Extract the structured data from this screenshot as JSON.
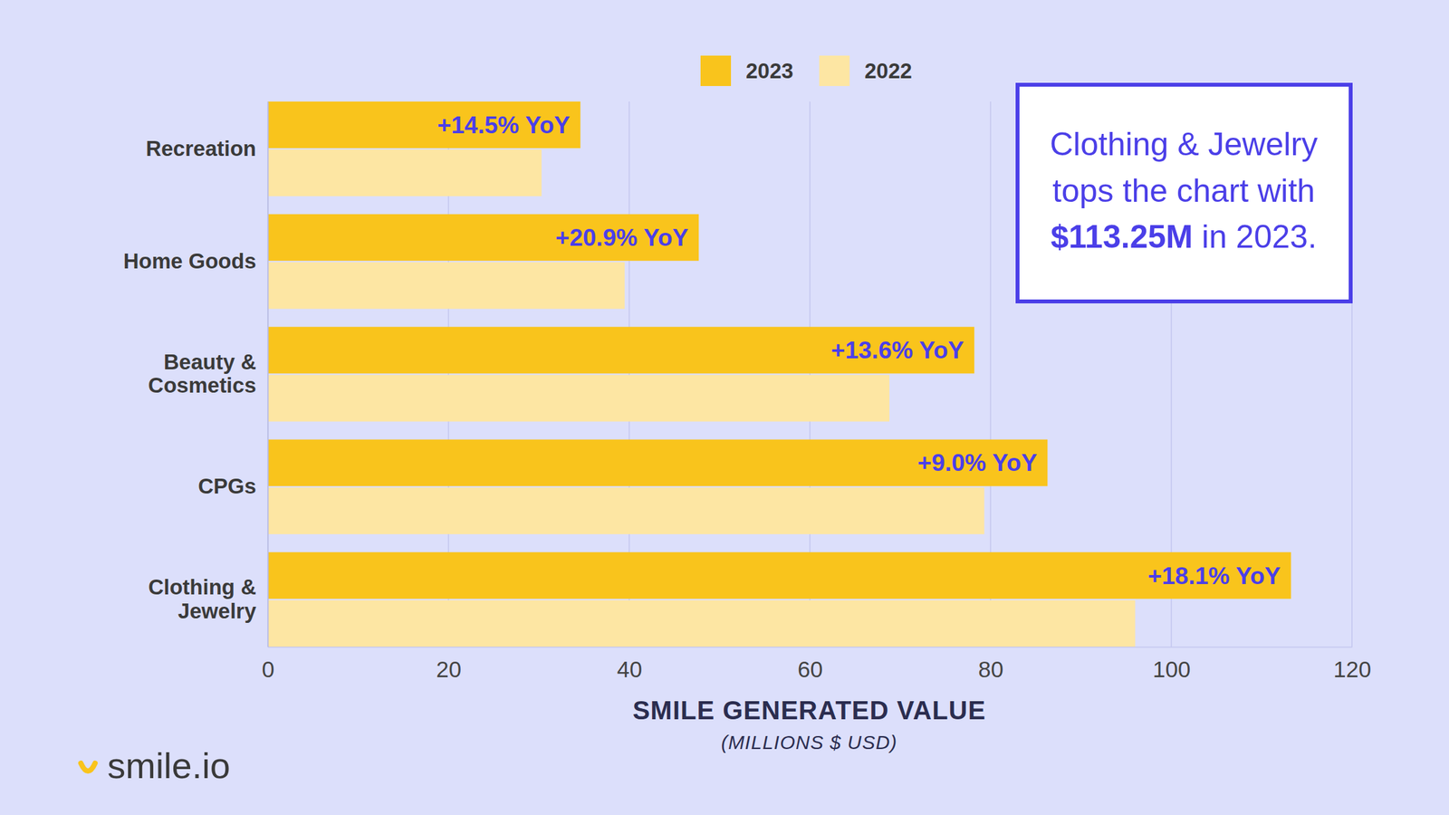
{
  "chart_data": {
    "type": "bar",
    "orientation": "horizontal",
    "categories": [
      "Recreation",
      "Home Goods",
      "Beauty & Cosmetics",
      "CPGs",
      "Clothing & Jewelry"
    ],
    "series": [
      {
        "name": "2023",
        "color": "#F9C41C",
        "values": [
          34.6,
          47.7,
          78.2,
          86.3,
          113.25
        ]
      },
      {
        "name": "2022",
        "color": "#FDE6A3",
        "values": [
          30.3,
          39.5,
          68.8,
          79.3,
          96.0
        ]
      }
    ],
    "xlim": [
      0,
      120
    ],
    "xticks": [
      0,
      20,
      40,
      60,
      80,
      100,
      120
    ],
    "grid": true,
    "legend": "top",
    "data_labels": false,
    "xlabel": "SMILE GENERATED VALUE",
    "xlabel_note": "(MILLIONS $ USD)",
    "annotations": [
      "+14.5% YoY",
      "+20.9% YoY",
      "+13.6% YoY",
      "+9.0% YoY",
      "+18.1% YoY"
    ],
    "callout": {
      "lines": [
        "Clothing & Jewelry",
        "tops the chart with"
      ],
      "highlight": "$113.25M",
      "tail": " in 2023."
    },
    "logo": "smile.io"
  }
}
